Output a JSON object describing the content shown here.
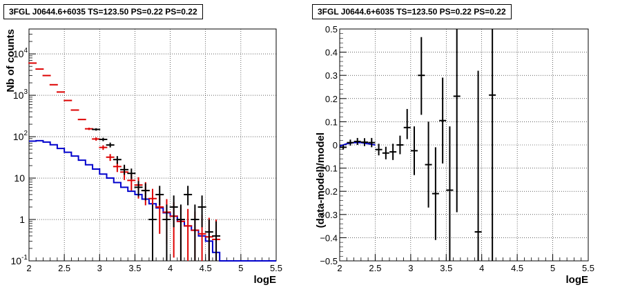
{
  "chart_data": [
    {
      "type": "step",
      "title": "3FGL J0644.6+6035 TS=123.50 PS=0.22 PS=0.22",
      "xlabel": "logE",
      "ylabel": "Nb of counts",
      "xlim": [
        2,
        5.5
      ],
      "ylim": [
        0.1,
        40000
      ],
      "yscale": "log",
      "grid": true,
      "xticks": [
        "2",
        "2.5",
        "3",
        "3.5",
        "4",
        "4.5",
        "5",
        "5.5"
      ],
      "yticks": [
        {
          "value": 0.1,
          "label": "10",
          "exp": "-1"
        },
        {
          "value": 1,
          "label": "1",
          "exp": ""
        },
        {
          "value": 10,
          "label": "10",
          "exp": ""
        },
        {
          "value": 100,
          "label": "10",
          "exp": "2"
        },
        {
          "value": 1000,
          "label": "10",
          "exp": "3"
        },
        {
          "value": 10000,
          "label": "10",
          "exp": "4"
        }
      ],
      "bin_edges": [
        2,
        2.1,
        2.2,
        2.3,
        2.4,
        2.5,
        2.6,
        2.7,
        2.8,
        2.9,
        3.0,
        3.1,
        3.2,
        3.3,
        3.4,
        3.5,
        3.6,
        3.7,
        3.8,
        3.9,
        4.0,
        4.1,
        4.2,
        4.3,
        4.4,
        4.5,
        4.6,
        4.7,
        4.8,
        4.9,
        5.0,
        5.1,
        5.2,
        5.3,
        5.4,
        5.5
      ],
      "series": [
        {
          "kind": "model-total",
          "color": "#dd0000",
          "x": [
            2.05,
            2.15,
            2.25,
            2.35,
            2.45,
            2.55,
            2.65,
            2.75,
            2.85,
            2.95,
            3.05,
            3.15,
            3.25,
            3.35,
            3.45,
            3.55,
            3.65,
            3.75,
            3.85,
            3.95,
            4.05,
            4.15,
            4.25,
            4.35,
            4.45,
            4.55,
            4.65
          ],
          "y": [
            6000,
            4300,
            3000,
            1800,
            1200,
            750,
            440,
            260,
            155,
            88,
            55,
            32,
            19,
            14,
            8.8,
            6.8,
            5.0,
            3.2,
            2.0,
            1.5,
            1.2,
            0.9,
            0.7,
            0.55,
            0.45,
            0.38,
            0.33
          ],
          "ylow": [
            null,
            null,
            null,
            null,
            null,
            null,
            null,
            null,
            145,
            80,
            48,
            26,
            14,
            9,
            5,
            3.2,
            2.2,
            1.0,
            0.45,
            0.25,
            0.12,
            0.1,
            0.1,
            0.1,
            0.1,
            0.1,
            0.1
          ],
          "yhigh": [
            null,
            null,
            null,
            null,
            null,
            null,
            null,
            null,
            165,
            96,
            62,
            38,
            24,
            20,
            12.5,
            10.5,
            8.0,
            5.5,
            3.8,
            3.1,
            2.6,
            2.1,
            1.8,
            1.55,
            1.3,
            1.1,
            1.0
          ]
        },
        {
          "kind": "data",
          "color": "#000000",
          "x": [
            2.95,
            3.05,
            3.15,
            3.25,
            3.35,
            3.45,
            3.55,
            3.65,
            3.75,
            3.85,
            3.95,
            4.05,
            4.15,
            4.25,
            4.35,
            4.45,
            4.55,
            4.65
          ],
          "y": [
            150,
            86,
            63,
            28,
            16,
            13,
            6.0,
            5.0,
            1.0,
            4.0,
            1.0,
            2.0,
            1.0,
            4.0,
            1.0,
            2.0,
            0.5,
            0.4
          ],
          "ylow": [
            140,
            78,
            55,
            22,
            12,
            9.5,
            3.6,
            2.9,
            0.1,
            2.2,
            0.1,
            0.65,
            0.1,
            2.2,
            0.1,
            0.65,
            0.1,
            0.1
          ],
          "yhigh": [
            160,
            94,
            72,
            34,
            21,
            17,
            8.5,
            7.5,
            2.3,
            6.5,
            2.3,
            3.8,
            2.3,
            6.5,
            2.3,
            3.8,
            1.0,
            0.9
          ]
        },
        {
          "kind": "model-background",
          "color": "#0000cc",
          "y": [
            78,
            80,
            74,
            64,
            52,
            42,
            34,
            27,
            21,
            16.5,
            12.5,
            10,
            7.8,
            6.0,
            4.8,
            4.0,
            3.1,
            2.4,
            1.9,
            1.45,
            1.2,
            0.9,
            0.7,
            0.55,
            0.4,
            0.3,
            0.16,
            0.1,
            0.1,
            0.1,
            0.1,
            0.1,
            0.1,
            0.1,
            0.1
          ]
        }
      ]
    },
    {
      "type": "errorbar",
      "title": "3FGL J0644.6+6035 TS=123.50 PS=0.22 PS=0.22",
      "xlabel": "logE",
      "ylabel": "(data-model)/model",
      "xlim": [
        2,
        5.5
      ],
      "ylim": [
        -0.5,
        0.5
      ],
      "grid": true,
      "xticks": [
        "2",
        "2.5",
        "3",
        "3.5",
        "4",
        "4.5",
        "5",
        "5.5"
      ],
      "yticks": [
        "−0.5",
        "−0.4",
        "−0.3",
        "−0.2",
        "−0.1",
        "0",
        "0.1",
        "0.2",
        "0.3",
        "0.4",
        "0.5"
      ],
      "yticks_values": [
        -0.5,
        -0.4,
        -0.3,
        -0.2,
        -0.1,
        0,
        0.1,
        0.2,
        0.3,
        0.4,
        0.5
      ],
      "series": [
        {
          "kind": "residuals",
          "color": "#000000",
          "x": [
            2.05,
            2.15,
            2.25,
            2.35,
            2.45,
            2.55,
            2.65,
            2.75,
            2.85,
            2.95,
            3.05,
            3.15,
            3.25,
            3.35,
            3.45,
            3.55,
            3.65,
            3.95,
            4.15
          ],
          "y": [
            -0.01,
            0.01,
            0.015,
            0.012,
            0.01,
            -0.02,
            -0.035,
            -0.03,
            0.0,
            0.075,
            -0.025,
            0.3,
            -0.085,
            -0.21,
            0.105,
            -0.195,
            0.21,
            -0.375,
            0.215
          ],
          "ylow": [
            -0.02,
            -0.003,
            0.0,
            -0.005,
            -0.01,
            -0.045,
            -0.062,
            -0.065,
            -0.04,
            0.025,
            -0.13,
            0.13,
            -0.27,
            -0.41,
            -0.08,
            -0.5,
            -0.29,
            -0.5,
            -0.5
          ],
          "yhigh": [
            0.0,
            0.023,
            0.03,
            0.029,
            0.03,
            0.005,
            -0.008,
            0.005,
            0.04,
            0.155,
            0.08,
            0.465,
            0.1,
            -0.01,
            0.29,
            0.08,
            0.5,
            0.32,
            0.5
          ]
        },
        {
          "kind": "model-line",
          "color": "#0000cc",
          "x": [
            2.0,
            2.1,
            2.2,
            2.3,
            2.4,
            2.5
          ],
          "y": [
            -0.005,
            0.005,
            0.01,
            0.01,
            0.005,
            0.0
          ]
        }
      ]
    }
  ]
}
